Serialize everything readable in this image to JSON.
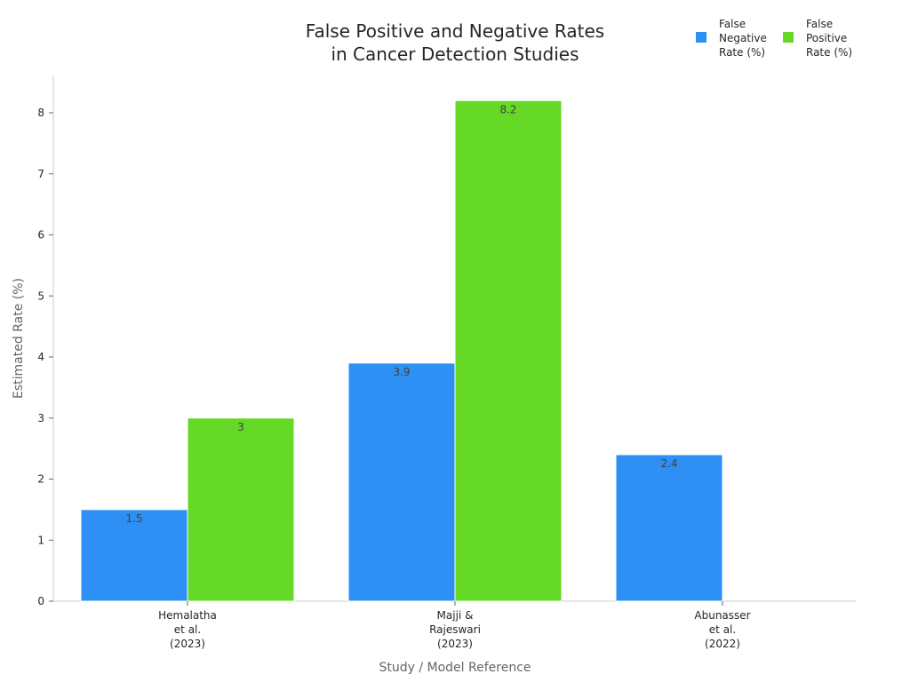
{
  "chart_data": {
    "type": "bar",
    "title": [
      "False Positive and Negative Rates",
      "in Cancer Detection Studies"
    ],
    "xlabel": "Study / Model Reference",
    "ylabel": "Estimated Rate (%)",
    "ylim": [
      0,
      8.6
    ],
    "yticks": [
      0,
      1,
      2,
      3,
      4,
      5,
      6,
      7,
      8
    ],
    "categories": [
      [
        "Hemalatha",
        "et al.",
        "(2023)"
      ],
      [
        "Majji &",
        "Rajeswari",
        "(2023)"
      ],
      [
        "Abunasser",
        "et al.",
        "(2022)"
      ]
    ],
    "series": [
      {
        "name": [
          "False",
          "Negative",
          "Rate (%)"
        ],
        "color": "#2e90f5",
        "values": [
          1.5,
          3.9,
          2.4
        ]
      },
      {
        "name": [
          "False",
          "Positive",
          "Rate (%)"
        ],
        "color": "#66d927",
        "values": [
          3,
          8.2,
          null
        ]
      }
    ],
    "legend": "top-right",
    "grid": false
  }
}
